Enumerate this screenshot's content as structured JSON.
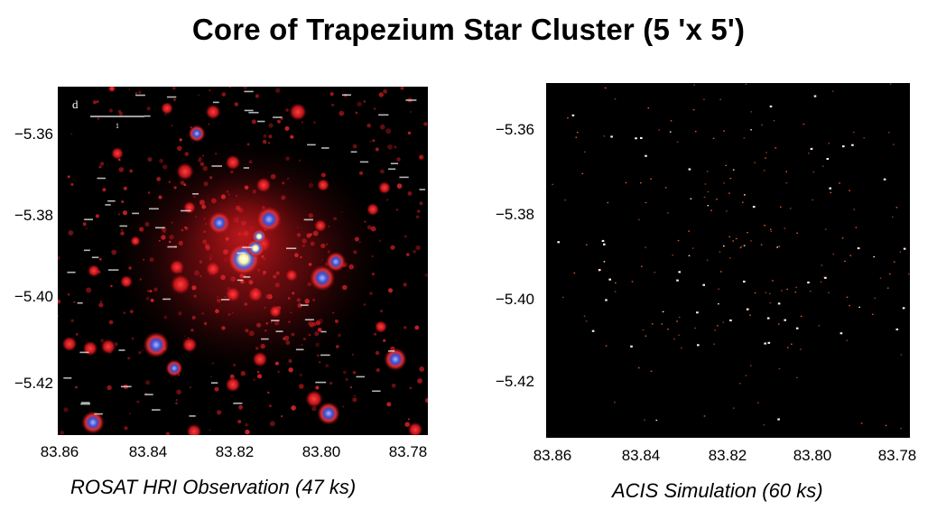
{
  "title": "Core of Trapezium Star Cluster (5 'x 5')",
  "panels": [
    {
      "caption": "ROSAT HRI Observation (47 ks)",
      "x_ticks": [
        "83.86",
        "83.84",
        "83.82",
        "83.80",
        "83.78"
      ],
      "y_ticks": [
        "−5.36",
        "−5.38",
        "−5.40",
        "−5.42"
      ],
      "panel_letter": "d",
      "scalebar_label": "1"
    },
    {
      "caption": "ACIS Simulation (60 ks)",
      "x_ticks": [
        "83.86",
        "83.84",
        "83.82",
        "83.80",
        "83.78"
      ],
      "y_ticks": [
        "−5.36",
        "−5.38",
        "−5.40",
        "−5.42"
      ]
    }
  ],
  "colors": {
    "background": "#ffffff",
    "image_background": "#000000",
    "source_red": "#e3262b",
    "source_core": "#3a4fd0",
    "source_bright": "#fff6a0"
  }
}
